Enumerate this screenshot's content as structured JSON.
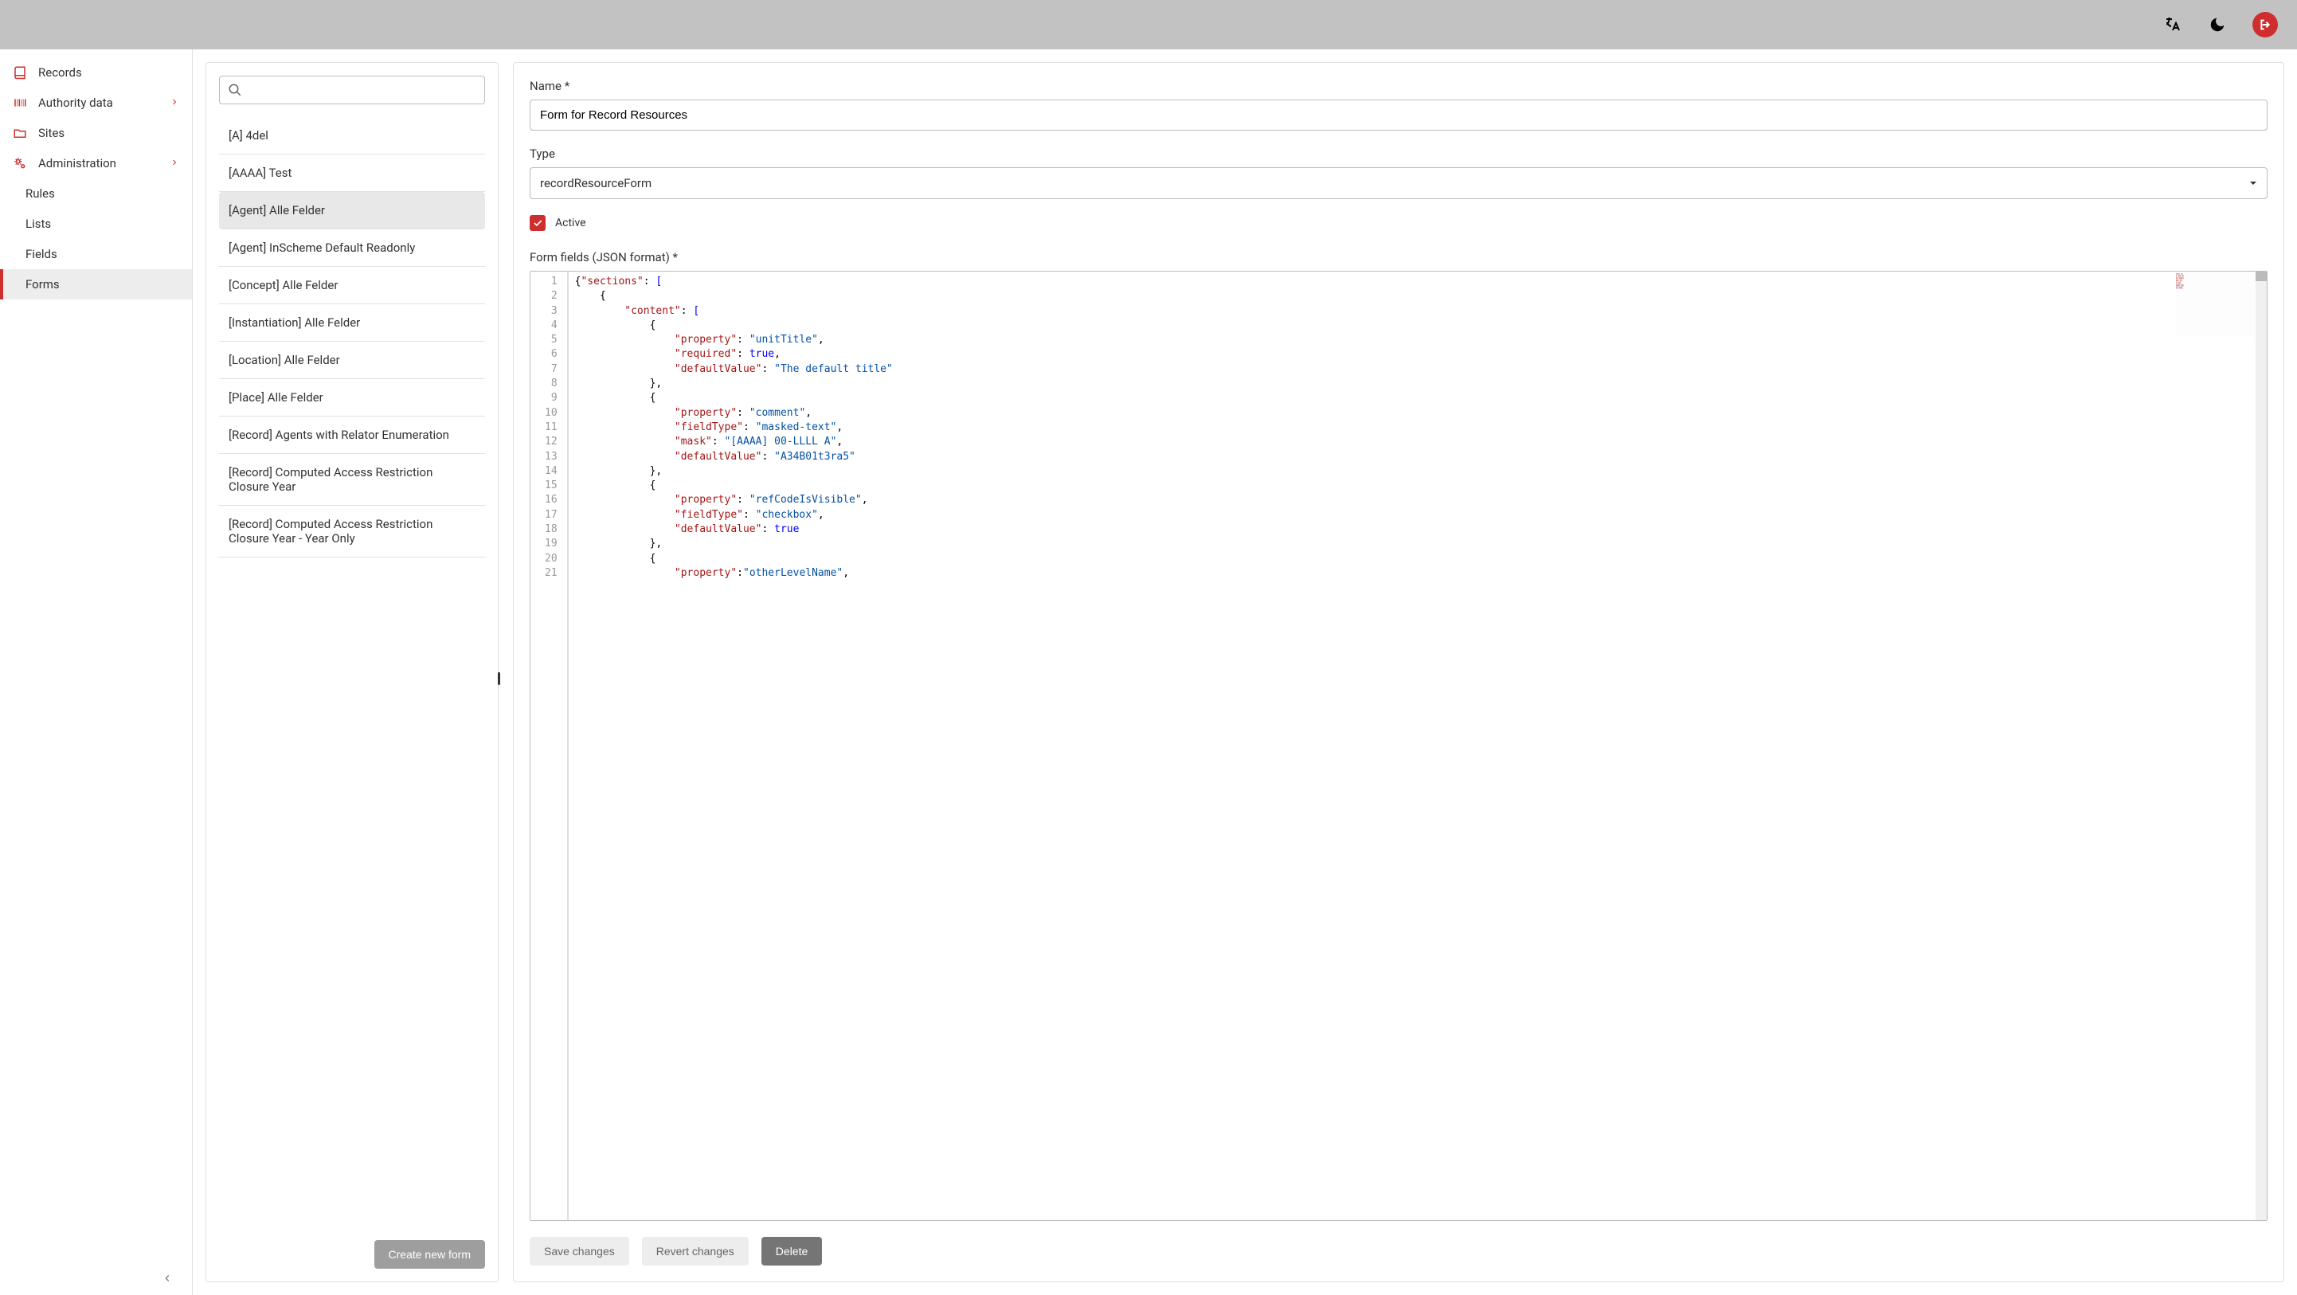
{
  "header": {
    "language_icon": "language",
    "theme_icon": "moon",
    "avatar_icon": "logout"
  },
  "sidebar": {
    "items": [
      {
        "icon": "book",
        "label": "Records",
        "expandable": false
      },
      {
        "icon": "barcode",
        "label": "Authority data",
        "expandable": true
      },
      {
        "icon": "folder",
        "label": "Sites",
        "expandable": false
      },
      {
        "icon": "gears",
        "label": "Administration",
        "expandable": true
      }
    ],
    "sub_items": [
      {
        "label": "Rules"
      },
      {
        "label": "Lists"
      },
      {
        "label": "Fields"
      },
      {
        "label": "Forms"
      }
    ],
    "active_sub": 3
  },
  "form_list": {
    "search_placeholder": "",
    "items": [
      "[A] 4del",
      "[AAAA] Test",
      "[Agent] Alle Felder",
      "[Agent] InScheme Default Readonly",
      "[Concept] Alle Felder",
      "[Instantiation] Alle Felder",
      "[Location] Alle Felder",
      "[Place] Alle Felder",
      "[Record] Agents with Relator Enumeration",
      "[Record] Computed Access Restriction Closure Year",
      "[Record] Computed Access Restriction Closure Year - Year Only"
    ],
    "selected": 2,
    "create_button": "Create new form"
  },
  "detail": {
    "name_label": "Name *",
    "name_value": "Form for Record Resources",
    "type_label": "Type",
    "type_value": "recordResourceForm",
    "active_label": "Active",
    "active_checked": true,
    "fields_label": "Form fields (JSON format) *",
    "code_lines": [
      [
        {
          "t": "brace",
          "v": "{"
        },
        {
          "t": "key",
          "v": "\"sections\""
        },
        {
          "t": "punc",
          "v": ": "
        },
        {
          "t": "bracket",
          "v": "["
        }
      ],
      [
        {
          "t": "indent",
          "v": "    "
        },
        {
          "t": "brace",
          "v": "{"
        }
      ],
      [
        {
          "t": "indent",
          "v": "        "
        },
        {
          "t": "key",
          "v": "\"content\""
        },
        {
          "t": "punc",
          "v": ": "
        },
        {
          "t": "bracket",
          "v": "["
        }
      ],
      [
        {
          "t": "indent",
          "v": "            "
        },
        {
          "t": "brace",
          "v": "{"
        }
      ],
      [
        {
          "t": "indent",
          "v": "                "
        },
        {
          "t": "key",
          "v": "\"property\""
        },
        {
          "t": "punc",
          "v": ": "
        },
        {
          "t": "str",
          "v": "\"unitTitle\""
        },
        {
          "t": "punc",
          "v": ","
        }
      ],
      [
        {
          "t": "indent",
          "v": "                "
        },
        {
          "t": "key",
          "v": "\"required\""
        },
        {
          "t": "punc",
          "v": ": "
        },
        {
          "t": "bool",
          "v": "true"
        },
        {
          "t": "punc",
          "v": ","
        }
      ],
      [
        {
          "t": "indent",
          "v": "                "
        },
        {
          "t": "key",
          "v": "\"defaultValue\""
        },
        {
          "t": "punc",
          "v": ": "
        },
        {
          "t": "str",
          "v": "\"The default title\""
        }
      ],
      [
        {
          "t": "indent",
          "v": "            "
        },
        {
          "t": "brace",
          "v": "}"
        },
        {
          "t": "punc",
          "v": ","
        }
      ],
      [
        {
          "t": "indent",
          "v": "            "
        },
        {
          "t": "brace",
          "v": "{"
        }
      ],
      [
        {
          "t": "indent",
          "v": "                "
        },
        {
          "t": "key",
          "v": "\"property\""
        },
        {
          "t": "punc",
          "v": ": "
        },
        {
          "t": "str",
          "v": "\"comment\""
        },
        {
          "t": "punc",
          "v": ","
        }
      ],
      [
        {
          "t": "indent",
          "v": "                "
        },
        {
          "t": "key",
          "v": "\"fieldType\""
        },
        {
          "t": "punc",
          "v": ": "
        },
        {
          "t": "str",
          "v": "\"masked-text\""
        },
        {
          "t": "punc",
          "v": ","
        }
      ],
      [
        {
          "t": "indent",
          "v": "                "
        },
        {
          "t": "key",
          "v": "\"mask\""
        },
        {
          "t": "punc",
          "v": ": "
        },
        {
          "t": "str",
          "v": "\"[AAAA] 00-LLLL A\""
        },
        {
          "t": "punc",
          "v": ","
        }
      ],
      [
        {
          "t": "indent",
          "v": "                "
        },
        {
          "t": "key",
          "v": "\"defaultValue\""
        },
        {
          "t": "punc",
          "v": ": "
        },
        {
          "t": "str",
          "v": "\"A34B01t3ra5\""
        }
      ],
      [
        {
          "t": "indent",
          "v": "            "
        },
        {
          "t": "brace",
          "v": "}"
        },
        {
          "t": "punc",
          "v": ","
        }
      ],
      [
        {
          "t": "indent",
          "v": "            "
        },
        {
          "t": "brace",
          "v": "{"
        }
      ],
      [
        {
          "t": "indent",
          "v": "                "
        },
        {
          "t": "key",
          "v": "\"property\""
        },
        {
          "t": "punc",
          "v": ": "
        },
        {
          "t": "str",
          "v": "\"refCodeIsVisible\""
        },
        {
          "t": "punc",
          "v": ","
        }
      ],
      [
        {
          "t": "indent",
          "v": "                "
        },
        {
          "t": "key",
          "v": "\"fieldType\""
        },
        {
          "t": "punc",
          "v": ": "
        },
        {
          "t": "str",
          "v": "\"checkbox\""
        },
        {
          "t": "punc",
          "v": ","
        }
      ],
      [
        {
          "t": "indent",
          "v": "                "
        },
        {
          "t": "key",
          "v": "\"defaultValue\""
        },
        {
          "t": "punc",
          "v": ": "
        },
        {
          "t": "bool",
          "v": "true"
        }
      ],
      [
        {
          "t": "indent",
          "v": "            "
        },
        {
          "t": "brace",
          "v": "}"
        },
        {
          "t": "punc",
          "v": ","
        }
      ],
      [
        {
          "t": "indent",
          "v": "            "
        },
        {
          "t": "brace",
          "v": "{"
        }
      ],
      [
        {
          "t": "indent",
          "v": "                "
        },
        {
          "t": "key",
          "v": "\"property\""
        },
        {
          "t": "punc",
          "v": ":"
        },
        {
          "t": "str",
          "v": "\"otherLevelName\""
        },
        {
          "t": "punc",
          "v": ","
        }
      ]
    ],
    "save_button": "Save changes",
    "revert_button": "Revert changes",
    "delete_button": "Delete"
  },
  "colors": {
    "accent": "#cf2e2e",
    "header_bg": "#c2c2c2",
    "border": "#e0e0e0"
  }
}
